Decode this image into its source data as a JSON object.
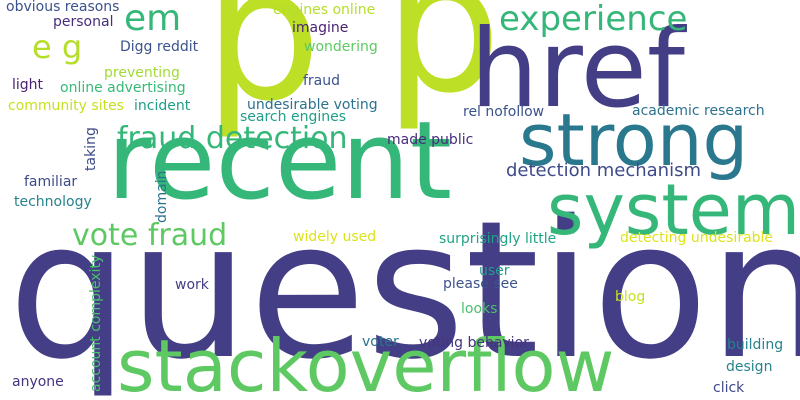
{
  "words": [
    {
      "text": "question",
      "color": "#433e85"
    },
    {
      "text": "p",
      "color": "#bddf26"
    },
    {
      "text": "p",
      "color": "#bddf26"
    },
    {
      "text": "href",
      "color": "#433e85"
    },
    {
      "text": "recent",
      "color": "#35b779"
    },
    {
      "text": "strong",
      "color": "#2a788e"
    },
    {
      "text": "system",
      "color": "#35b779"
    },
    {
      "text": "stackoverflow",
      "color": "#5ec962"
    },
    {
      "text": "experience",
      "color": "#35b779"
    },
    {
      "text": "em",
      "color": "#35b779"
    },
    {
      "text": "e g",
      "color": "#b5de2b"
    },
    {
      "text": "fraud detection",
      "color": "#35b779"
    },
    {
      "text": "vote fraud",
      "color": "#5ec962"
    },
    {
      "text": "detection mechanism",
      "color": "#3e4a89"
    },
    {
      "text": "obvious reasons",
      "color": "#3b528b"
    },
    {
      "text": "personal",
      "color": "#472d7b"
    },
    {
      "text": "engines online",
      "color": "#b5de2b"
    },
    {
      "text": "imagine",
      "color": "#482475"
    },
    {
      "text": "wondering",
      "color": "#5ec962"
    },
    {
      "text": "Digg reddit",
      "color": "#3b528b"
    },
    {
      "text": "preventing",
      "color": "#a2da37"
    },
    {
      "text": "fraud",
      "color": "#3b528b"
    },
    {
      "text": "light",
      "color": "#482173"
    },
    {
      "text": "online advertising",
      "color": "#38b977"
    },
    {
      "text": "community sites",
      "color": "#c8e020"
    },
    {
      "text": "incident",
      "color": "#1f9e89"
    },
    {
      "text": "undesirable voting",
      "color": "#2c728e"
    },
    {
      "text": "academic research",
      "color": "#2c728e"
    },
    {
      "text": "search engines",
      "color": "#1f9e89"
    },
    {
      "text": "rel nofollow",
      "color": "#3b528b"
    },
    {
      "text": "made public",
      "color": "#472d7b"
    },
    {
      "text": "familiar",
      "color": "#3e4a89"
    },
    {
      "text": "technology",
      "color": "#26828e"
    },
    {
      "text": "widely used",
      "color": "#dde318"
    },
    {
      "text": "surprisingly little",
      "color": "#20a486"
    },
    {
      "text": "detecting undesirable",
      "color": "#dde318"
    },
    {
      "text": "user",
      "color": "#1f9e89"
    },
    {
      "text": "please see",
      "color": "#3b528b"
    },
    {
      "text": "work",
      "color": "#433e85"
    },
    {
      "text": "blog",
      "color": "#c8e020"
    },
    {
      "text": "looks",
      "color": "#4ac16d"
    },
    {
      "text": "building",
      "color": "#26828e"
    },
    {
      "text": "voter",
      "color": "#2c728e"
    },
    {
      "text": "voting behavior",
      "color": "#46337e"
    },
    {
      "text": "design",
      "color": "#26828e"
    },
    {
      "text": "anyone",
      "color": "#46337e"
    },
    {
      "text": "click",
      "color": "#3e4a89"
    },
    {
      "text": "taking",
      "color": "#3e4a89"
    },
    {
      "text": "domain",
      "color": "#2c728e"
    },
    {
      "text": "account complexity",
      "color": "#4ac16d"
    }
  ]
}
